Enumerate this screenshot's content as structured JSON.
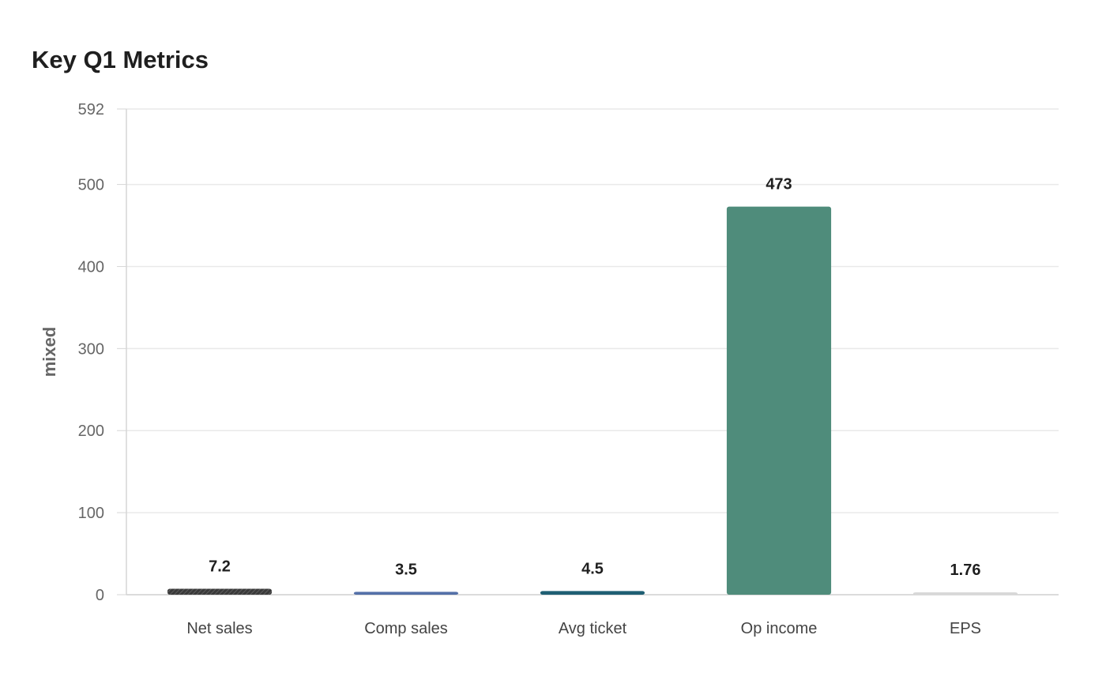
{
  "chart_data": {
    "type": "bar",
    "title": "Key Q1 Metrics",
    "xlabel": "",
    "ylabel": "mixed",
    "categories": [
      "Net sales",
      "Comp sales",
      "Avg ticket",
      "Op income",
      "EPS"
    ],
    "values": [
      7.2,
      3.5,
      4.5,
      473,
      1.76
    ],
    "value_labels": [
      "7.2",
      "3.5",
      "4.5",
      "473",
      "1.76"
    ],
    "colors": [
      "#3a3a3a",
      "#5470a8",
      "#1f5f73",
      "#4f8c7b",
      "#d8d8d8"
    ],
    "patterns": [
      "hatched",
      "solid",
      "solid",
      "solid",
      "solid"
    ],
    "ylim": [
      0,
      592
    ],
    "yticks": [
      0,
      100,
      200,
      300,
      400,
      500,
      592
    ],
    "grid": true,
    "legend": "none"
  }
}
